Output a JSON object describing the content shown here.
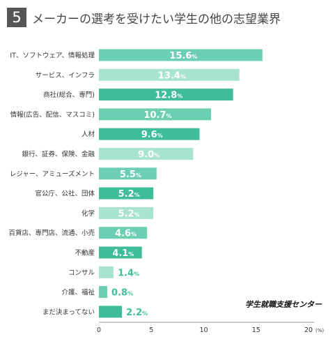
{
  "header": {
    "section_number": "5",
    "title": "メーカーの選考を受けたい学生の他の志望業界"
  },
  "source_label": "学生就職支援センター",
  "colors": {
    "dark_teal": "#3dbd98",
    "mid_teal": "#6ccfb2",
    "light_teal": "#a8e2d0",
    "value_text_outside": "#3fbf9a",
    "axis": "#999999"
  },
  "chart_data": {
    "type": "bar",
    "orientation": "horizontal",
    "categories": [
      "IT、ソフトウェア、情報処理",
      "サービス、インフラ",
      "商社(総合、専門)",
      "情報(広告、配信、マスコミ)",
      "人材",
      "銀行、証券、保険、金融",
      "レジャー、アミューズメント",
      "官公庁、公社、団体",
      "化学",
      "百貨店、専門店、流通、小売",
      "不動産",
      "コンサル",
      "介護、福祉",
      "まだ決まってない"
    ],
    "values": [
      15.6,
      13.4,
      12.8,
      10.7,
      9.6,
      9.0,
      5.5,
      5.2,
      5.2,
      4.6,
      4.1,
      1.4,
      0.8,
      2.2
    ],
    "value_labels": [
      "15.6",
      "13.4",
      "12.8",
      "10.7",
      "9.6",
      "9.0",
      "5.5",
      "5.2",
      "5.2",
      "4.6",
      "4.1",
      "1.4",
      "0.8",
      "2.2"
    ],
    "value_suffix": "%",
    "bar_colors": [
      "mid_teal",
      "light_teal",
      "dark_teal",
      "mid_teal",
      "dark_teal",
      "light_teal",
      "mid_teal",
      "dark_teal",
      "light_teal",
      "mid_teal",
      "dark_teal",
      "light_teal",
      "mid_teal",
      "dark_teal"
    ],
    "xlim": [
      0,
      20
    ],
    "xticks": [
      0,
      5,
      10,
      15,
      20
    ],
    "x_unit": "(%)",
    "xlabel": "",
    "ylabel": "",
    "grid": false,
    "legend": "none"
  }
}
